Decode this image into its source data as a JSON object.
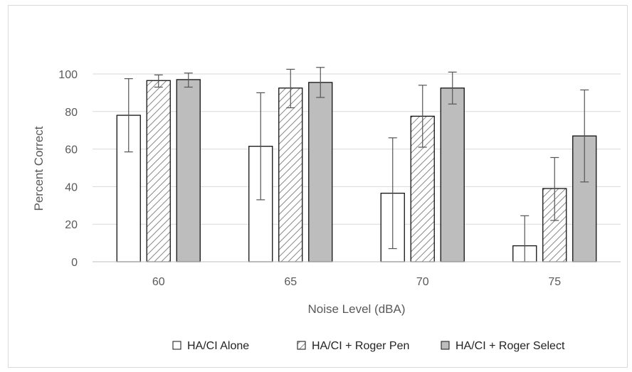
{
  "chart_data": {
    "type": "bar",
    "title": "",
    "xlabel": "Noise Level (dBA)",
    "ylabel": "Percent Correct",
    "categories": [
      "60",
      "65",
      "70",
      "75"
    ],
    "ylim": [
      0,
      100
    ],
    "yticks": [
      0,
      20,
      40,
      60,
      80,
      100
    ],
    "grid": true,
    "legend_position": "bottom",
    "series": [
      {
        "name": "HA/CI Alone",
        "style": "white",
        "values": [
          78,
          61.5,
          36.5,
          8.5
        ],
        "error_low": [
          58.5,
          33,
          7,
          0
        ],
        "error_high": [
          97.5,
          90,
          66,
          24.5
        ]
      },
      {
        "name": "HA/CI + Roger Pen",
        "style": "hatched",
        "values": [
          96.5,
          92.5,
          77.5,
          39
        ],
        "error_low": [
          93,
          82,
          61,
          22
        ],
        "error_high": [
          99.5,
          102.5,
          94,
          55.5
        ]
      },
      {
        "name": "HA/CI + Roger Select",
        "style": "gray",
        "values": [
          97,
          95.5,
          92.5,
          67
        ],
        "error_low": [
          93,
          87.5,
          84,
          42.5
        ],
        "error_high": [
          100.5,
          103.5,
          101,
          91.5
        ]
      }
    ],
    "colors": {
      "bar_edge": "#111111",
      "white_fill": "#ffffff",
      "hatch_line": "#888888",
      "gray_fill": "#bdbdbd",
      "grid": "#d9d9d9",
      "error_bar": "#555555"
    }
  }
}
